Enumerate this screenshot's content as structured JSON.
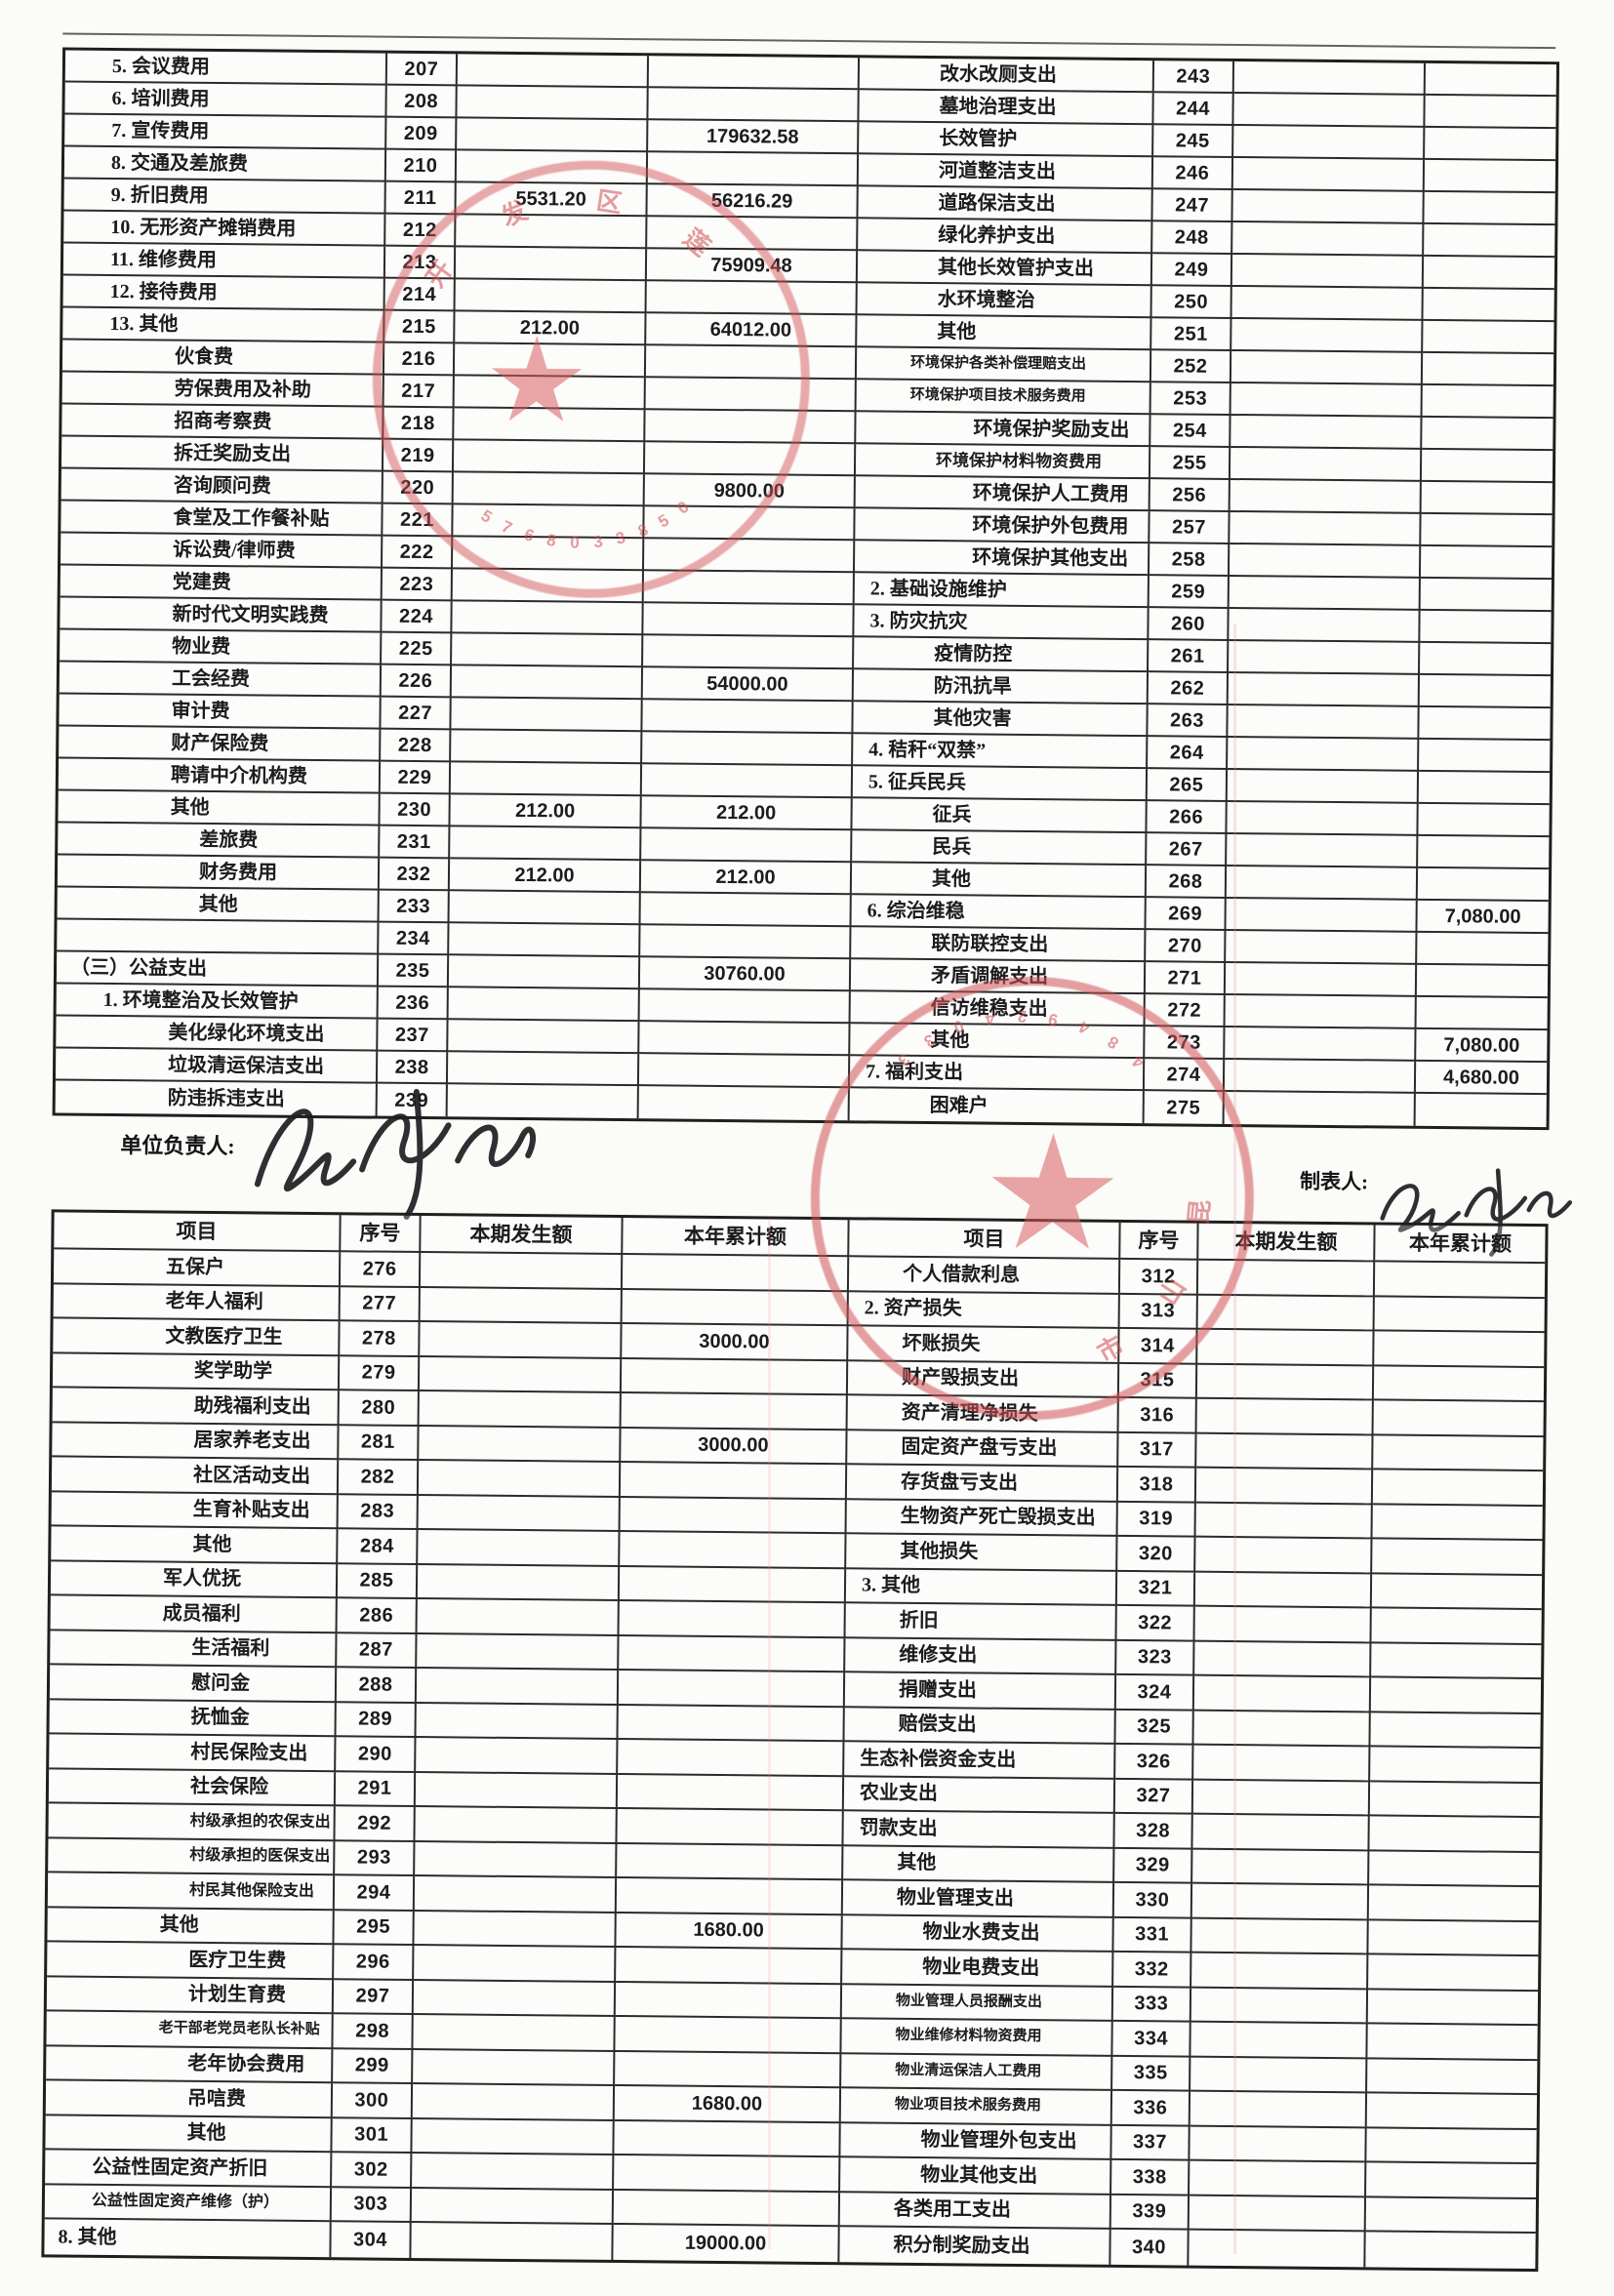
{
  "row_format": [
    "item",
    "seq",
    "current_amount",
    "ytd_amount",
    "indent_level",
    "font_size_px_or_0"
  ],
  "footer": {
    "unit_head_label": "单位负责人:",
    "preparer_label": "制表人:"
  },
  "tables": {
    "upper": {
      "left_rows": [
        [
          "5. 会议费用",
          "207",
          "",
          "",
          1,
          0
        ],
        [
          "6. 培训费用",
          "208",
          "",
          "",
          1,
          0
        ],
        [
          "7. 宣传费用",
          "209",
          "",
          "179632.58",
          1,
          0
        ],
        [
          "8. 交通及差旅费",
          "210",
          "",
          "",
          1,
          0
        ],
        [
          "9. 折旧费用",
          "211",
          "5531.20",
          "56216.29",
          1,
          0
        ],
        [
          "10. 无形资产摊销费用",
          "212",
          "",
          "",
          1,
          0
        ],
        [
          "11. 维修费用",
          "213",
          "",
          "75909.48",
          1,
          0
        ],
        [
          "12. 接待费用",
          "214",
          "",
          "",
          1,
          0
        ],
        [
          "13. 其他",
          "215",
          "212.00",
          "64012.00",
          1,
          0
        ],
        [
          "伙食费",
          "216",
          "",
          "",
          2,
          0
        ],
        [
          "劳保费用及补助",
          "217",
          "",
          "",
          2,
          0
        ],
        [
          "招商考察费",
          "218",
          "",
          "",
          2,
          0
        ],
        [
          "拆迁奖励支出",
          "219",
          "",
          "",
          2,
          0
        ],
        [
          "咨询顾问费",
          "220",
          "",
          "9800.00",
          2,
          0
        ],
        [
          "食堂及工作餐补贴",
          "221",
          "",
          "",
          2,
          0
        ],
        [
          "诉讼费/律师费",
          "222",
          "",
          "",
          2,
          0
        ],
        [
          "党建费",
          "223",
          "",
          "",
          2,
          0
        ],
        [
          "新时代文明实践费",
          "224",
          "",
          "",
          2,
          0
        ],
        [
          "物业费",
          "225",
          "",
          "",
          2,
          0
        ],
        [
          "工会经费",
          "226",
          "",
          "54000.00",
          2,
          0
        ],
        [
          "审计费",
          "227",
          "",
          "",
          2,
          0
        ],
        [
          "财产保险费",
          "228",
          "",
          "",
          2,
          0
        ],
        [
          "聘请中介机构费",
          "229",
          "",
          "",
          2,
          0
        ],
        [
          "其他",
          "230",
          "212.00",
          "212.00",
          2,
          0
        ],
        [
          "差旅费",
          "231",
          "",
          "",
          3,
          0
        ],
        [
          "财务费用",
          "232",
          "212.00",
          "212.00",
          3,
          0
        ],
        [
          "其他",
          "233",
          "",
          "",
          3,
          0
        ],
        [
          "",
          "234",
          "",
          "",
          0,
          0
        ],
        [
          "（三）公益支出",
          "235",
          "",
          "30760.00",
          0,
          0
        ],
        [
          "1. 环境整治及长效管护",
          "236",
          "",
          "",
          1,
          0
        ],
        [
          "美化绿化环境支出",
          "237",
          "",
          "",
          2,
          0
        ],
        [
          "垃圾清运保洁支出",
          "238",
          "",
          "",
          2,
          0
        ],
        [
          "防违拆违支出",
          "239",
          "",
          "",
          2,
          0
        ]
      ],
      "right_rows": [
        [
          "改水改厕支出",
          "243",
          "",
          "",
          2,
          0
        ],
        [
          "墓地治理支出",
          "244",
          "",
          "",
          2,
          0
        ],
        [
          "长效管护",
          "245",
          "",
          "",
          2,
          0
        ],
        [
          "河道整洁支出",
          "246",
          "",
          "",
          2,
          0
        ],
        [
          "道路保洁支出",
          "247",
          "",
          "",
          2,
          0
        ],
        [
          "绿化养护支出",
          "248",
          "",
          "",
          2,
          0
        ],
        [
          "其他长效管护支出",
          "249",
          "",
          "",
          2,
          0
        ],
        [
          "水环境整治",
          "250",
          "",
          "",
          2,
          0
        ],
        [
          "其他",
          "251",
          "",
          "",
          2,
          0
        ],
        [
          "环境保护各类补偿理赔支出",
          "252",
          "",
          "",
          1,
          15
        ],
        [
          "环境保护项目技术服务费用",
          "253",
          "",
          "",
          1,
          15
        ],
        [
          "环境保护奖励支出",
          "254",
          "",
          "",
          3,
          0
        ],
        [
          "环境保护材料物资费用",
          "255",
          "",
          "",
          2,
          17
        ],
        [
          "环境保护人工费用",
          "256",
          "",
          "",
          3,
          0
        ],
        [
          "环境保护外包费用",
          "257",
          "",
          "",
          3,
          0
        ],
        [
          "环境保护其他支出",
          "258",
          "",
          "",
          3,
          0
        ],
        [
          "2. 基础设施维护",
          "259",
          "",
          "",
          0,
          0
        ],
        [
          "3. 防灾抗灾",
          "260",
          "",
          "",
          0,
          0
        ],
        [
          "疫情防控",
          "261",
          "",
          "",
          2,
          0
        ],
        [
          "防汛抗旱",
          "262",
          "",
          "",
          2,
          0
        ],
        [
          "其他灾害",
          "263",
          "",
          "",
          2,
          0
        ],
        [
          "4. 秸秆“双禁”",
          "264",
          "",
          "",
          0,
          0
        ],
        [
          "5. 征兵民兵",
          "265",
          "",
          "",
          0,
          0
        ],
        [
          "征兵",
          "266",
          "",
          "",
          2,
          0
        ],
        [
          "民兵",
          "267",
          "",
          "",
          2,
          0
        ],
        [
          "其他",
          "268",
          "",
          "",
          2,
          0
        ],
        [
          "6. 综治维稳",
          "269",
          "",
          "7,080.00",
          0,
          0
        ],
        [
          "联防联控支出",
          "270",
          "",
          "",
          2,
          0
        ],
        [
          "矛盾调解支出",
          "271",
          "",
          "",
          2,
          0
        ],
        [
          "信访维稳支出",
          "272",
          "",
          "",
          2,
          0
        ],
        [
          "其他",
          "273",
          "",
          "7,080.00",
          2,
          0
        ],
        [
          "7. 福利支出",
          "274",
          "",
          "4,680.00",
          0,
          0
        ],
        [
          "困难户",
          "275",
          "",
          "",
          2,
          0
        ]
      ]
    },
    "lower": {
      "headers": [
        "项目",
        "序号",
        "本期发生额",
        "本年累计额",
        "项目",
        "序号",
        "本期发生额",
        "本年累计额"
      ],
      "left_rows": [
        [
          "五保户",
          "276",
          "",
          "",
          2,
          0
        ],
        [
          "老年人福利",
          "277",
          "",
          "",
          2,
          0
        ],
        [
          "文教医疗卫生",
          "278",
          "",
          "3000.00",
          2,
          0
        ],
        [
          "奖学助学",
          "279",
          "",
          "",
          3,
          0
        ],
        [
          "助残福利支出",
          "280",
          "",
          "",
          3,
          0
        ],
        [
          "居家养老支出",
          "281",
          "",
          "3000.00",
          3,
          0
        ],
        [
          "社区活动支出",
          "282",
          "",
          "",
          3,
          0
        ],
        [
          "生育补贴支出",
          "283",
          "",
          "",
          3,
          0
        ],
        [
          "其他",
          "284",
          "",
          "",
          3,
          0
        ],
        [
          "军人优抚",
          "285",
          "",
          "",
          2,
          0
        ],
        [
          "成员福利",
          "286",
          "",
          "",
          2,
          0
        ],
        [
          "生活福利",
          "287",
          "",
          "",
          3,
          0
        ],
        [
          "慰问金",
          "288",
          "",
          "",
          3,
          0
        ],
        [
          "抚恤金",
          "289",
          "",
          "",
          3,
          0
        ],
        [
          "村民保险支出",
          "290",
          "",
          "",
          3,
          0
        ],
        [
          "社会保险",
          "291",
          "",
          "",
          3,
          0
        ],
        [
          "村级承担的农保支出",
          "292",
          "",
          "",
          3,
          16
        ],
        [
          "村级承担的医保支出",
          "293",
          "",
          "",
          3,
          16
        ],
        [
          "村民其他保险支出",
          "294",
          "",
          "",
          3,
          16
        ],
        [
          "其他",
          "295",
          "",
          "1680.00",
          2,
          0
        ],
        [
          "医疗卫生费",
          "296",
          "",
          "",
          3,
          0
        ],
        [
          "计划生育费",
          "297",
          "",
          "",
          3,
          0
        ],
        [
          "老干部老党员老队长补贴",
          "298",
          "",
          "",
          2,
          15
        ],
        [
          "老年协会费用",
          "299",
          "",
          "",
          3,
          0
        ],
        [
          "吊唁费",
          "300",
          "",
          "1680.00",
          3,
          0
        ],
        [
          "其他",
          "301",
          "",
          "",
          3,
          0
        ],
        [
          "公益性固定资产折旧",
          "302",
          "",
          "",
          1,
          0
        ],
        [
          "公益性固定资产维修（护）",
          "303",
          "",
          "",
          1,
          16
        ],
        [
          "8. 其他",
          "304",
          "",
          "19000.00",
          0,
          0
        ]
      ],
      "right_rows": [
        [
          "个人借款利息",
          "312",
          "",
          "",
          1,
          0
        ],
        [
          "2. 资产损失",
          "313",
          "",
          "",
          0,
          0
        ],
        [
          "坏账损失",
          "314",
          "",
          "",
          1,
          0
        ],
        [
          "财产毁损支出",
          "315",
          "",
          "",
          1,
          0
        ],
        [
          "资产清理净损失",
          "316",
          "",
          "",
          1,
          0
        ],
        [
          "固定资产盘亏支出",
          "317",
          "",
          "",
          1,
          0
        ],
        [
          "存货盘亏支出",
          "318",
          "",
          "",
          1,
          0
        ],
        [
          "生物资产死亡毁损支出",
          "319",
          "",
          "",
          1,
          0
        ],
        [
          "其他损失",
          "320",
          "",
          "",
          1,
          0
        ],
        [
          "3. 其他",
          "321",
          "",
          "",
          0,
          0
        ],
        [
          "折旧",
          "322",
          "",
          "",
          1,
          0
        ],
        [
          "维修支出",
          "323",
          "",
          "",
          1,
          0
        ],
        [
          "捐赠支出",
          "324",
          "",
          "",
          1,
          0
        ],
        [
          "赔偿支出",
          "325",
          "",
          "",
          1,
          0
        ],
        [
          "生态补偿资金支出",
          "326",
          "",
          "",
          0,
          0
        ],
        [
          "农业支出",
          "327",
          "",
          "",
          0,
          0
        ],
        [
          "罚款支出",
          "328",
          "",
          "",
          0,
          0
        ],
        [
          "其他",
          "329",
          "",
          "",
          1,
          0
        ],
        [
          "物业管理支出",
          "330",
          "",
          "",
          1,
          0
        ],
        [
          "物业水费支出",
          "331",
          "",
          "",
          2,
          0
        ],
        [
          "物业电费支出",
          "332",
          "",
          "",
          2,
          0
        ],
        [
          "物业管理人员报酬支出",
          "333",
          "",
          "",
          1,
          15
        ],
        [
          "物业维修材料物资费用",
          "334",
          "",
          "",
          1,
          15
        ],
        [
          "物业清运保洁人工费用",
          "335",
          "",
          "",
          1,
          15
        ],
        [
          "物业项目技术服务费用",
          "336",
          "",
          "",
          1,
          15
        ],
        [
          "物业管理外包支出",
          "337",
          "",
          "",
          2,
          0
        ],
        [
          "物业其他支出",
          "338",
          "",
          "",
          2,
          0
        ],
        [
          "各类用工支出",
          "339",
          "",
          "",
          1,
          0
        ],
        [
          "积分制奖励支出",
          "340",
          "",
          "",
          1,
          0
        ]
      ]
    }
  },
  "seals": {
    "seal1": {
      "digits": "0583308675",
      "ring_text": "开发区莲"
    },
    "seal2": {
      "digits": "330429484",
      "ring_text": "昆山市"
    }
  },
  "colors": {
    "seal_red": "#d05054",
    "ink": "#1c1c1f"
  }
}
